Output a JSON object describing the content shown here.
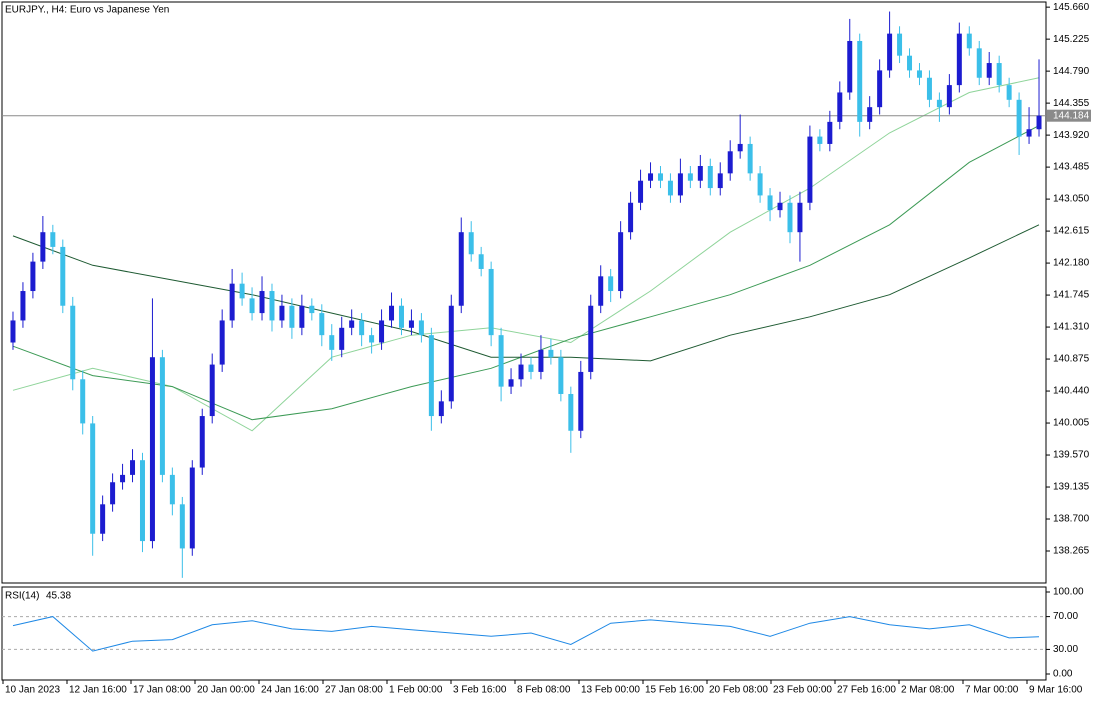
{
  "chart_data": [
    {
      "type": "candlestick",
      "title": "EURJPY., H4:  Euro vs Japanese Yen",
      "ylim": [
        137.83,
        145.73
      ],
      "yticks": [
        {
          "value": 145.66,
          "label": "145.660"
        },
        145.225,
        {
          "value": 144.79,
          "label": "144.790"
        },
        144.355,
        {
          "value": 143.92,
          "label": "143.920"
        },
        143.485,
        {
          "value": 143.05,
          "label": "143.050"
        },
        142.615,
        {
          "value": 142.18,
          "label": "142.180"
        },
        141.745,
        {
          "value": 141.31,
          "label": "141.310"
        },
        140.875,
        {
          "value": 140.44,
          "label": "140.440"
        },
        140.005,
        {
          "value": 139.57,
          "label": "139.570"
        },
        139.135,
        {
          "value": 138.7,
          "label": "138.700"
        },
        138.265
      ],
      "time_labels": [
        "10 Jan 2023",
        "12 Jan 16:00",
        "17 Jan 08:00",
        "20 Jan 00:00",
        "24 Jan 16:00",
        "27 Jan 08:00",
        "1 Feb 00:00",
        "3 Feb 16:00",
        "8 Feb 08:00",
        "13 Feb 00:00",
        "15 Feb 16:00",
        "20 Feb 08:00",
        "23 Feb 00:00",
        "27 Feb 16:00",
        "2 Mar 08:00",
        "7 Mar 00:00",
        "9 Mar 16:00"
      ],
      "current_price": {
        "value": 144.184,
        "label": "144.184"
      },
      "bull_color": "#1c1cd0",
      "bear_color": "#3bbfe9",
      "open": [
        141.1,
        141.4,
        141.8,
        142.2,
        142.6,
        142.4,
        141.6,
        140.6,
        140.0,
        138.5,
        138.9,
        139.2,
        139.3,
        139.5,
        138.4,
        140.9,
        139.3,
        138.9,
        138.3,
        139.4,
        140.1,
        140.8,
        141.4,
        141.9,
        141.7,
        141.5,
        141.8,
        141.4,
        141.6,
        141.3,
        141.6,
        141.5,
        141.2,
        141.0,
        141.3,
        141.4,
        141.2,
        141.1,
        141.4,
        141.6,
        141.3,
        141.4,
        141.2,
        140.1,
        140.3,
        141.6,
        142.6,
        142.3,
        142.1,
        141.2,
        140.5,
        140.6,
        140.8,
        140.7,
        141.0,
        140.9,
        140.4,
        139.9,
        140.7,
        141.6,
        142.0,
        141.8,
        142.6,
        143.0,
        143.3,
        143.4,
        143.3,
        143.1,
        143.4,
        143.3,
        143.5,
        143.2,
        143.4,
        143.7,
        143.8,
        143.4,
        143.1,
        142.9,
        143.0,
        142.6,
        143.0,
        143.9,
        143.8,
        144.1,
        144.5,
        145.2,
        144.1,
        144.3,
        144.8,
        145.3,
        145.0,
        144.8,
        144.7,
        144.4,
        144.3,
        144.6,
        145.3,
        145.1,
        144.7,
        144.9,
        144.6,
        144.4,
        143.9,
        144.0
      ],
      "high": [
        141.52,
        141.92,
        142.32,
        142.82,
        142.7,
        142.5,
        141.72,
        140.72,
        140.1,
        139.02,
        139.32,
        139.45,
        139.65,
        139.6,
        141.7,
        141.0,
        139.4,
        139.0,
        139.5,
        140.2,
        140.95,
        141.55,
        142.1,
        142.05,
        141.85,
        142.0,
        141.9,
        141.75,
        141.7,
        141.75,
        141.7,
        141.62,
        141.35,
        141.45,
        141.55,
        141.5,
        141.3,
        141.55,
        141.78,
        141.7,
        141.55,
        141.5,
        141.3,
        140.45,
        141.75,
        142.8,
        142.75,
        142.4,
        142.2,
        141.3,
        140.75,
        140.95,
        140.9,
        141.2,
        141.15,
        141.0,
        140.5,
        140.85,
        141.75,
        142.15,
        142.1,
        142.75,
        143.15,
        143.45,
        143.55,
        143.5,
        143.4,
        143.6,
        143.5,
        143.65,
        143.6,
        143.55,
        143.85,
        144.2,
        143.9,
        143.5,
        143.2,
        143.15,
        143.1,
        143.15,
        144.05,
        144.0,
        144.25,
        144.65,
        145.5,
        145.3,
        144.45,
        144.95,
        145.6,
        145.4,
        145.1,
        144.9,
        144.8,
        144.5,
        144.75,
        145.45,
        145.4,
        145.2,
        145.05,
        145.0,
        144.7,
        144.5,
        144.3,
        144.95
      ],
      "low": [
        141.0,
        141.3,
        141.7,
        142.1,
        142.3,
        141.5,
        140.45,
        139.85,
        138.2,
        138.4,
        138.8,
        139.1,
        139.2,
        138.25,
        138.3,
        139.2,
        138.75,
        137.9,
        138.2,
        139.3,
        140.0,
        140.7,
        141.3,
        141.6,
        141.4,
        141.4,
        141.25,
        141.3,
        141.15,
        141.2,
        141.4,
        141.05,
        140.85,
        140.9,
        141.2,
        141.05,
        140.95,
        141.0,
        141.3,
        141.2,
        141.2,
        141.1,
        139.9,
        140.0,
        140.2,
        141.5,
        142.2,
        142.0,
        141.05,
        140.3,
        140.4,
        140.5,
        140.6,
        140.6,
        140.8,
        140.3,
        139.6,
        139.8,
        140.6,
        141.5,
        141.65,
        141.7,
        142.5,
        142.9,
        143.2,
        143.2,
        143.0,
        143.0,
        143.2,
        143.2,
        143.1,
        143.1,
        143.3,
        143.6,
        143.3,
        143.0,
        142.75,
        142.8,
        142.45,
        142.2,
        142.9,
        143.7,
        143.7,
        144.0,
        144.4,
        143.9,
        144.0,
        144.2,
        144.7,
        144.9,
        144.7,
        144.6,
        144.3,
        144.1,
        144.2,
        144.5,
        145.0,
        144.6,
        144.6,
        144.5,
        144.3,
        143.65,
        143.8,
        143.9
      ],
      "close": [
        141.4,
        141.8,
        142.2,
        142.6,
        142.4,
        141.6,
        140.6,
        140.0,
        138.5,
        138.9,
        139.2,
        139.3,
        139.5,
        138.4,
        140.9,
        139.3,
        138.9,
        138.3,
        139.4,
        140.1,
        140.8,
        141.4,
        141.9,
        141.7,
        141.5,
        141.8,
        141.4,
        141.6,
        141.3,
        141.6,
        141.5,
        141.2,
        141.0,
        141.3,
        141.4,
        141.2,
        141.1,
        141.4,
        141.6,
        141.3,
        141.4,
        141.2,
        140.1,
        140.3,
        141.6,
        142.6,
        142.3,
        142.1,
        141.2,
        140.5,
        140.6,
        140.8,
        140.7,
        141.0,
        140.9,
        140.4,
        139.9,
        140.7,
        141.6,
        142.0,
        141.8,
        142.6,
        143.0,
        143.3,
        143.4,
        143.3,
        143.1,
        143.4,
        143.3,
        143.5,
        143.2,
        143.4,
        143.7,
        143.8,
        143.4,
        143.1,
        142.9,
        143.0,
        142.6,
        143.0,
        143.9,
        143.8,
        144.1,
        144.5,
        145.2,
        144.1,
        144.3,
        144.8,
        145.3,
        145.0,
        144.8,
        144.7,
        144.4,
        144.3,
        144.6,
        145.3,
        145.1,
        144.7,
        144.9,
        144.6,
        144.4,
        143.9,
        144.0,
        144.184
      ],
      "series": [
        {
          "color": "#8fd49a",
          "x": [
            0,
            8,
            16,
            24,
            32,
            40,
            48,
            56,
            64,
            72,
            80,
            88,
            96,
            103
          ],
          "values": [
            140.45,
            140.75,
            140.5,
            139.9,
            140.9,
            141.2,
            141.3,
            141.1,
            141.8,
            142.6,
            143.2,
            143.95,
            144.5,
            144.7
          ]
        },
        {
          "color": "#3c9a55",
          "x": [
            0,
            8,
            16,
            24,
            32,
            40,
            48,
            56,
            64,
            72,
            80,
            88,
            96,
            103
          ],
          "values": [
            141.05,
            140.65,
            140.5,
            140.05,
            140.2,
            140.5,
            140.75,
            141.15,
            141.45,
            141.75,
            142.15,
            142.7,
            143.55,
            144.05
          ]
        },
        {
          "color": "#1e5a32",
          "x": [
            0,
            8,
            16,
            24,
            32,
            40,
            48,
            56,
            64,
            72,
            80,
            88,
            96,
            103
          ],
          "values": [
            142.55,
            142.15,
            141.95,
            141.75,
            141.5,
            141.25,
            140.9,
            140.9,
            140.85,
            141.2,
            141.45,
            141.75,
            142.25,
            142.7
          ]
        }
      ]
    },
    {
      "type": "line",
      "title": "RSI(14)",
      "ylim": [
        -7.3,
        106.1
      ],
      "yticks": [
        {
          "value": 100,
          "label": "100.00"
        },
        {
          "value": 70,
          "label": "70.00"
        },
        {
          "value": 30,
          "label": "30.00"
        },
        {
          "value": 0,
          "label": "0.00"
        }
      ],
      "levels": [
        70,
        30
      ],
      "series": [
        {
          "color": "#1e88e5",
          "x": [
            0,
            4,
            8,
            12,
            16,
            20,
            24,
            28,
            32,
            36,
            40,
            44,
            48,
            52,
            56,
            60,
            64,
            68,
            72,
            76,
            80,
            84,
            88,
            92,
            96,
            100,
            103
          ],
          "values": [
            59,
            70,
            28,
            40,
            42,
            60,
            65,
            55,
            52,
            58,
            54,
            50,
            46,
            50,
            36,
            62,
            66,
            62,
            58,
            46,
            62,
            70,
            60,
            55,
            60,
            44,
            45.38
          ]
        }
      ]
    }
  ]
}
